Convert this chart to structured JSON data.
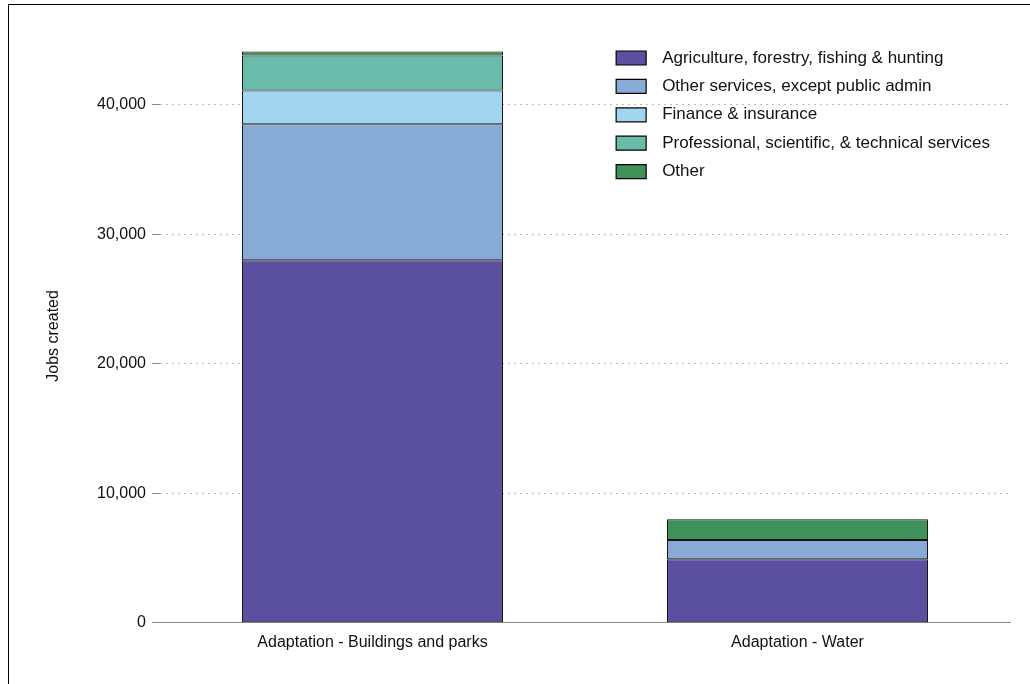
{
  "chart_data": {
    "type": "bar",
    "stacked": true,
    "ylabel": "Jobs created",
    "categories": [
      "Adaptation - Buildings and parks",
      "Adaptation - Water"
    ],
    "series": [
      {
        "name": "Agriculture, forestry, fishing & hunting",
        "color": "#5b4f9f",
        "values": [
          28000,
          4900
        ]
      },
      {
        "name": "Other services, except public admin",
        "color": "#87abd6",
        "values": [
          10500,
          1500
        ]
      },
      {
        "name": "Finance & insurance",
        "color": "#a2d6f0",
        "values": [
          2600,
          0
        ]
      },
      {
        "name": "Professional, scientific, & technical services",
        "color": "#6bbbab",
        "values": [
          2700,
          0
        ]
      },
      {
        "name": "Other",
        "color": "#3f915a",
        "values": [
          300,
          1600
        ]
      }
    ],
    "ylim": [
      0,
      44300
    ],
    "yticks": [
      0,
      {
        "value": 10000,
        "label": "10,000"
      },
      {
        "value": 20000,
        "label": "20,000"
      },
      {
        "value": 30000,
        "label": "30,000"
      },
      {
        "value": 40000,
        "label": "40,000"
      }
    ],
    "grid": "y",
    "legend": "top right"
  }
}
